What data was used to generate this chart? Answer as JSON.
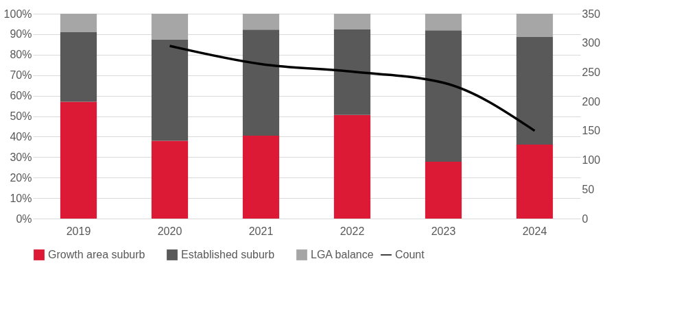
{
  "chart_data": {
    "type": "bar",
    "stacked": true,
    "categories": [
      "2019",
      "2020",
      "2021",
      "2022",
      "2023",
      "2024"
    ],
    "series": [
      {
        "name": "Growth area suburb",
        "color": "#dc1a35",
        "values": [
          57,
          38,
          40.5,
          50.6,
          27.8,
          36.1
        ]
      },
      {
        "name": "Established suburb",
        "color": "#595959",
        "values": [
          34,
          49.5,
          51.7,
          41.9,
          64.1,
          52.5
        ]
      },
      {
        "name": "LGA balance",
        "color": "#a6a6a6",
        "values": [
          9,
          12.5,
          7.8,
          7.5,
          8.1,
          11.4
        ]
      },
      {
        "name": "Count",
        "type": "line",
        "axis": "y2",
        "color": "#000000",
        "values": [
          null,
          295,
          264,
          251,
          232,
          150
        ]
      }
    ],
    "ylim": [
      0,
      100
    ],
    "yticks": [
      {
        "value": 0,
        "label": "0%"
      },
      {
        "value": 10,
        "label": "10%"
      },
      {
        "value": 20,
        "label": "20%"
      },
      {
        "value": 30,
        "label": "30%"
      },
      {
        "value": 40,
        "label": "40%"
      },
      {
        "value": 50,
        "label": "50%"
      },
      {
        "value": 60,
        "label": "60%"
      },
      {
        "value": 70,
        "label": "70%"
      },
      {
        "value": 80,
        "label": "80%"
      },
      {
        "value": 90,
        "label": "90%"
      },
      {
        "value": 100,
        "label": "100%"
      }
    ],
    "y2lim": [
      0,
      350
    ],
    "y2ticks": [
      0,
      50,
      100,
      150,
      200,
      250,
      300,
      350
    ],
    "grid": "y",
    "legend": "bottom",
    "marker": "none",
    "line_style": "solid"
  }
}
